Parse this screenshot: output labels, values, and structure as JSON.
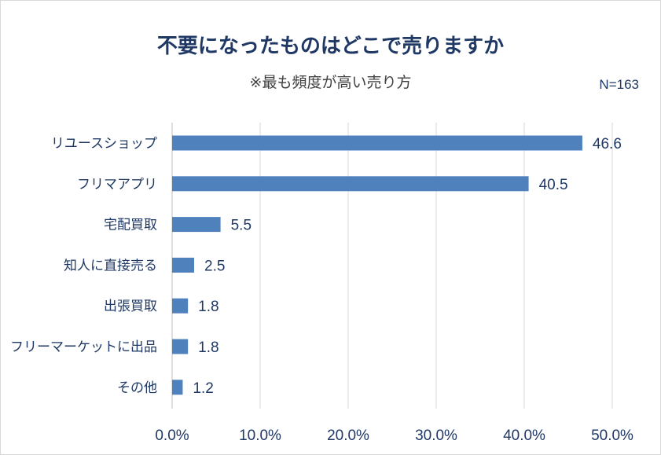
{
  "chart_data": {
    "type": "bar",
    "orientation": "horizontal",
    "title": "不要になったものはどこで売りますか",
    "subtitle": "※最も頻度が高い売り方",
    "note": "N=163",
    "categories": [
      "リユースショップ",
      "フリマアプリ",
      "宅配買取",
      "知人に直接売る",
      "出張買取",
      "フリーマーケットに出品",
      "その他"
    ],
    "values": [
      46.6,
      40.5,
      5.5,
      2.5,
      1.8,
      1.8,
      1.2
    ],
    "value_labels": [
      "46.6",
      "40.5",
      "5.5",
      "2.5",
      "1.8",
      "1.8",
      "1.2"
    ],
    "xlim": [
      0,
      50
    ],
    "xticks": [
      0,
      10,
      20,
      30,
      40,
      50
    ],
    "xtick_labels": [
      "0.0%",
      "10.0%",
      "20.0%",
      "30.0%",
      "40.0%",
      "50.0%"
    ],
    "grid": true,
    "legend": "none",
    "bar_color": "#4f81bd",
    "grid_color": "#d9d9d9",
    "text_color": "#1f3864"
  }
}
